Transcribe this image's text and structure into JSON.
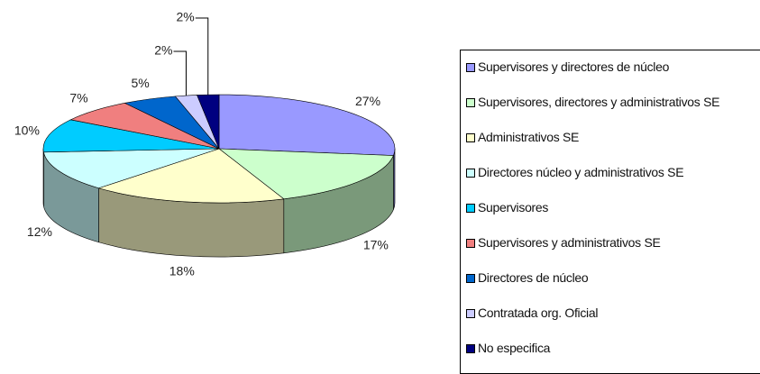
{
  "chart_data": {
    "type": "pie",
    "three_d": true,
    "legend": "right",
    "categories": [
      "Supervisores y directores de núcleo",
      "Supervisores, directores y administrativos SE",
      "Administrativos SE",
      "Directores núcleo y administrativos SE",
      "Supervisores",
      "Supervisores y administrativos SE",
      "Directores de núcleo",
      "Contratada org. Oficial",
      "No especifica"
    ],
    "values": [
      27,
      17,
      18,
      12,
      10,
      7,
      5,
      2,
      2
    ],
    "value_labels": [
      "27%",
      "17%",
      "18%",
      "12%",
      "10%",
      "7%",
      "5%",
      "2%",
      "2%"
    ],
    "colors": [
      "#9999ff",
      "#ccffcc",
      "#ffffcc",
      "#ccffff",
      "#00ccff",
      "#f07f7f",
      "#0066cc",
      "#ccccff",
      "#000080"
    ]
  }
}
